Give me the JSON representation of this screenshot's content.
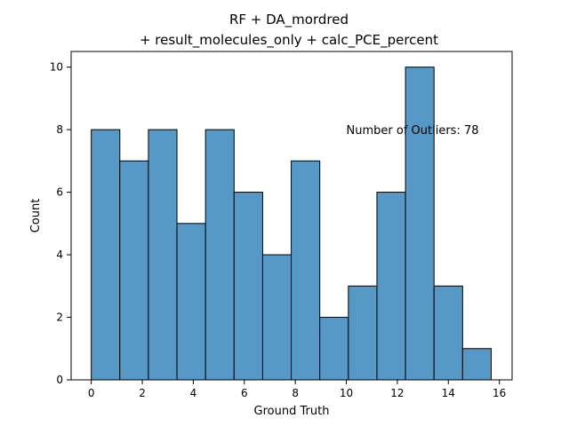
{
  "chart_data": {
    "type": "bar",
    "title_line1": "RF + DA_mordred",
    "title_line2": "+ result_molecules_only + calc_PCE_percent",
    "xlabel": "Ground Truth",
    "ylabel": "Count",
    "annotation": "Number of Outliers: 78",
    "annotation_at": {
      "x": 10.0,
      "y": 8.0
    },
    "xlim": [
      -0.79,
      16.5
    ],
    "ylim": [
      0,
      10.5
    ],
    "xticks": [
      0,
      2,
      4,
      6,
      8,
      10,
      12,
      14,
      16
    ],
    "yticks": [
      0,
      2,
      4,
      6,
      8,
      10
    ],
    "bin_edges": [
      0.0,
      1.12,
      2.24,
      3.36,
      4.48,
      5.6,
      6.72,
      7.84,
      8.96,
      10.08,
      11.2,
      12.32,
      13.44,
      14.56,
      15.68
    ],
    "values": [
      8,
      7,
      8,
      5,
      8,
      6,
      4,
      7,
      2,
      3,
      6,
      10,
      3,
      1
    ],
    "bar_color": "#5799c6",
    "edge_color": "#000000",
    "grid": false
  }
}
